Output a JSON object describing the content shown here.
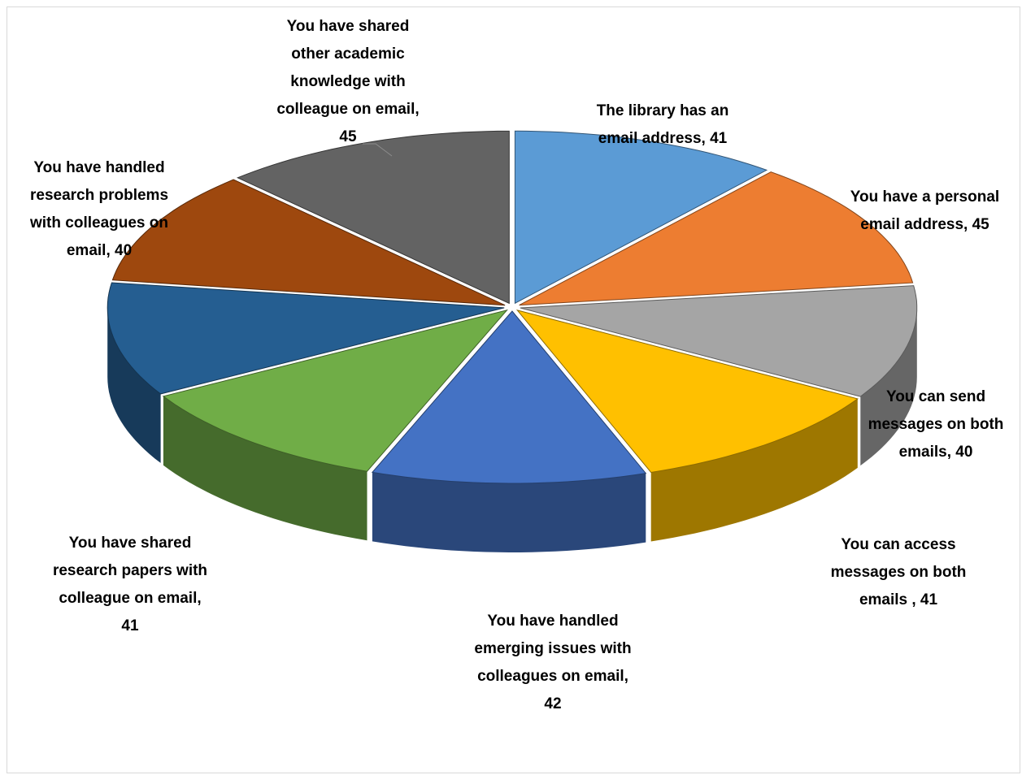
{
  "chart_data": {
    "type": "pie",
    "title": "",
    "slices": [
      {
        "label": "The library has an email address",
        "value": 41,
        "color": "#5B9BD5",
        "label_lines": [
          "The library has an",
          "email address, 41"
        ]
      },
      {
        "label": "You have a personal email address",
        "value": 45,
        "color": "#ED7D31",
        "label_lines": [
          "You have a personal",
          "email address, 45"
        ]
      },
      {
        "label": "You can send messages on both emails",
        "value": 40,
        "color": "#A5A5A5",
        "label_lines": [
          "You can send",
          "messages on both",
          "emails, 40"
        ]
      },
      {
        "label": "You can access messages on both emails",
        "value": 41,
        "color": "#FFC000",
        "label_lines": [
          "You can access",
          "messages on both",
          "emails , 41"
        ]
      },
      {
        "label": "You have handled emerging issues with colleagues on email",
        "value": 42,
        "color": "#4472C4",
        "label_lines": [
          "You have handled",
          "emerging issues with",
          "colleagues on email,",
          "42"
        ]
      },
      {
        "label": "You have shared research papers with colleague on email",
        "value": 41,
        "color": "#70AD47",
        "label_lines": [
          "You have shared",
          "research papers with",
          "colleague on email,",
          "41"
        ]
      },
      {
        "label": "You have handled research problems with colleagues on email",
        "value": 40,
        "color": "#255E91",
        "label_lines": [
          "You have handled",
          "research problems",
          "with colleagues on",
          "email, 40"
        ]
      },
      {
        "label": "You have handled research problems with colleagues on email",
        "value": 40,
        "color": "#9E480E",
        "label_lines": []
      },
      {
        "label": "You have shared other academic knowledge with colleague on email",
        "value": 45,
        "color": "#636363",
        "label_lines": [
          "You have shared",
          "other academic",
          "knowledge with",
          "colleague on email,",
          "45"
        ]
      }
    ]
  }
}
